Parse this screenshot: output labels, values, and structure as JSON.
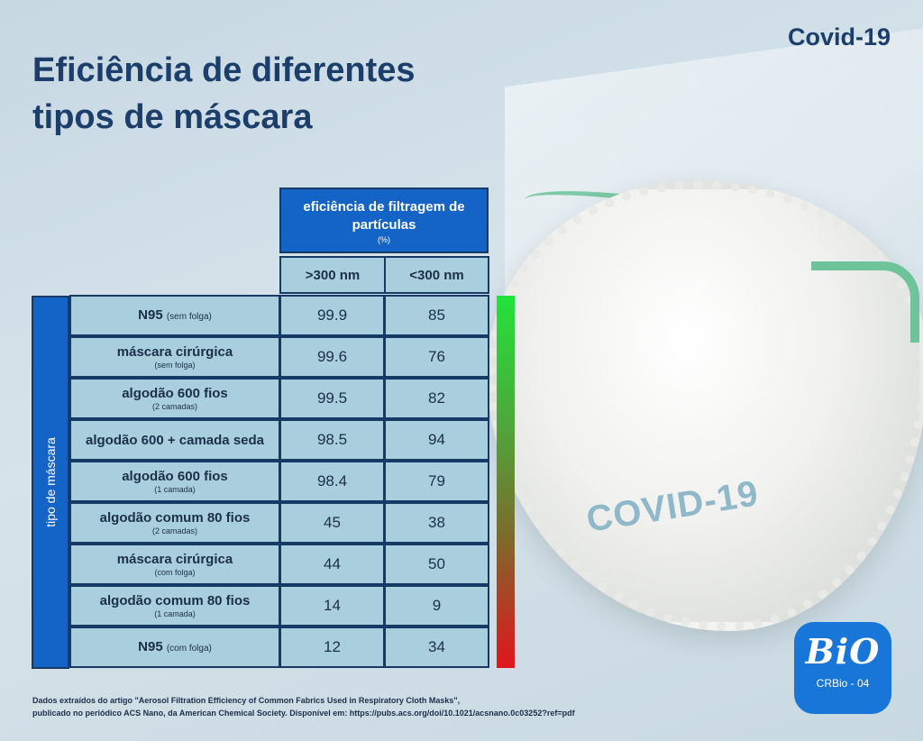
{
  "tag": "Covid-19",
  "title": "Eficiência de diferentes tipos de máscara",
  "table": {
    "header": {
      "line1": "eficiência de filtragem de partículas",
      "unit": "(%)"
    },
    "col1": ">300 nm",
    "col2": "<300 nm",
    "side_label": "tipo de máscara",
    "rows": [
      {
        "name": "N95",
        "note_inline": "(sem folga)",
        "note": "",
        "v1": "99.9",
        "v2": "85"
      },
      {
        "name": "máscara cirúrgica",
        "note_inline": "",
        "note": "(sem folga)",
        "v1": "99.6",
        "v2": "76"
      },
      {
        "name": "algodão 600 fios",
        "note_inline": "",
        "note": "(2 camadas)",
        "v1": "99.5",
        "v2": "82"
      },
      {
        "name": "algodão 600 + camada seda",
        "note_inline": "",
        "note": "",
        "v1": "98.5",
        "v2": "94"
      },
      {
        "name": "algodão 600 fios",
        "note_inline": "",
        "note": "(1 camada)",
        "v1": "98.4",
        "v2": "79"
      },
      {
        "name": "algodão comum 80 fios",
        "note_inline": "",
        "note": "(2 camadas)",
        "v1": "45",
        "v2": "38"
      },
      {
        "name": "máscara cirúrgica",
        "note_inline": "",
        "note": "(com folga)",
        "v1": "44",
        "v2": "50"
      },
      {
        "name": "algodão comum 80 fios",
        "note_inline": "",
        "note": "(1 camada)",
        "v1": "14",
        "v2": "9"
      },
      {
        "name": "N95",
        "note_inline": "(com folga)",
        "note": "",
        "v1": "12",
        "v2": "34"
      }
    ]
  },
  "mask_text": "COVID-19",
  "logo": {
    "big": "BiO",
    "small": "CRBio - 04"
  },
  "source": {
    "line1": "Dados extraídos do artigo \"Aerosol Filtration Efficiency of Common Fabrics Used in Respiratory Cloth Masks\",",
    "line2": "publicado no periódico ACS Nano, da American Chemical Society. Disponível em: https://pubs.acs.org/doi/10.1021/acsnano.0c03252?ref=pdf"
  }
}
